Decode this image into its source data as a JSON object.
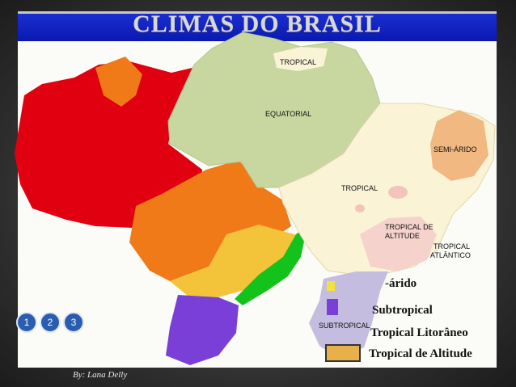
{
  "title": "CLIMAS DO BRASIL",
  "regions": {
    "tropical_top": "TROPICAL",
    "equatorial": "EQUATORIAL",
    "semiarido": "SEMI-ÁRIDO",
    "tropical": "TROPICAL",
    "tropical_altitude": [
      "TROPICAL DE",
      "ALTITUDE"
    ],
    "tropical_atlantico": [
      "TROPICAL",
      "ATLÂNTICO"
    ],
    "subtropical": "SUBTROPICAL"
  },
  "legend": [
    {
      "label": "-árido",
      "color": "#f3e23c"
    },
    {
      "label": "Subtropical",
      "color": "#7a3fd6"
    },
    {
      "label": "Tropical Litorâneo",
      "color": "#ffffff"
    },
    {
      "label": "Tropical de Altitude",
      "color": "#e8b04a"
    }
  ],
  "colors": {
    "equatorial": "#c8d7a0",
    "tropical": "#faf3d6",
    "semiarido": "#f1b882",
    "red_region": "#e00010",
    "orange_region": "#f07a18",
    "yellow_region": "#f3c43a",
    "green_region": "#14c21c",
    "purple_region": "#7a3fd6",
    "lavender_region": "#c4bde0",
    "pink_region": "#f6d2cc",
    "banner": "#1a2fd0"
  },
  "nav": [
    "1",
    "2",
    "3"
  ],
  "credit": "By: Lana Delly"
}
